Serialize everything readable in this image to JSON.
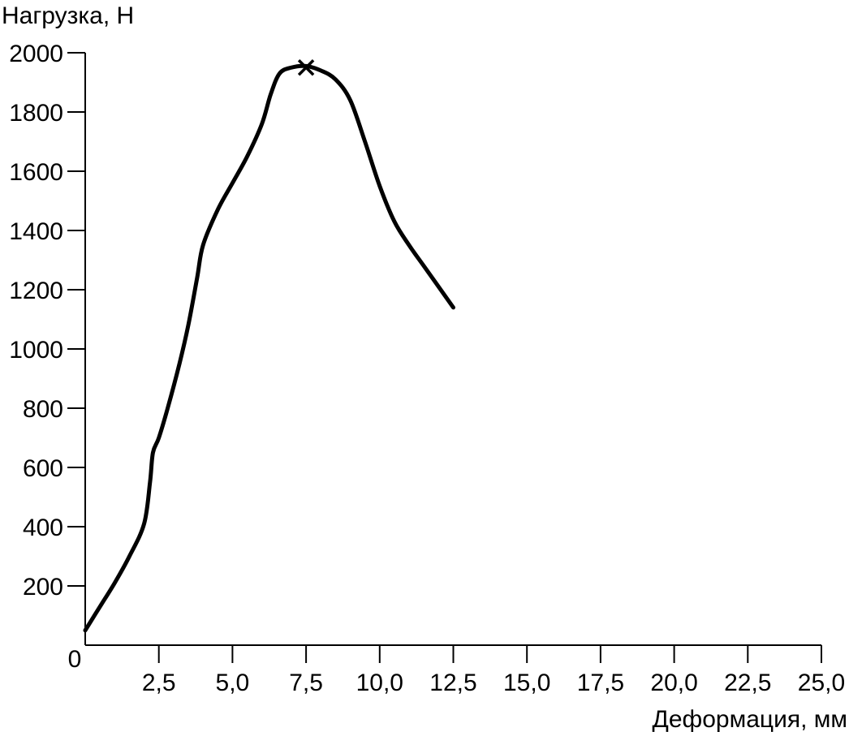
{
  "chart_data": {
    "type": "line",
    "title": "",
    "xlabel": "Деформация, мм",
    "ylabel": "Нагрузка, Н",
    "origin_label": "0",
    "xlim": [
      0,
      25
    ],
    "ylim": [
      0,
      2000
    ],
    "x_ticks": [
      2.5,
      5.0,
      7.5,
      10.0,
      12.5,
      15.0,
      17.5,
      20.0,
      22.5,
      25.0
    ],
    "x_tick_labels": [
      "2,5",
      "5,0",
      "7,5",
      "10,0",
      "12,5",
      "15,0",
      "17,5",
      "20,0",
      "22,5",
      "25,0"
    ],
    "y_ticks": [
      200,
      400,
      600,
      800,
      1000,
      1200,
      1400,
      1600,
      1800,
      2000
    ],
    "y_tick_labels": [
      "200",
      "400",
      "600",
      "800",
      "1000",
      "1200",
      "1400",
      "1600",
      "1800",
      "2000"
    ],
    "grid": false,
    "line_color": "#000000",
    "series": [
      {
        "x": [
          0,
          0.5,
          1.0,
          1.5,
          2.0,
          2.2,
          2.3,
          2.5,
          2.8,
          3.2,
          3.5,
          3.8,
          4.0,
          4.5,
          5.0,
          5.5,
          6.0,
          6.3,
          6.6,
          7.0,
          7.5,
          8.0,
          8.5,
          9.0,
          9.5,
          10.0,
          10.5,
          11.0,
          11.5,
          12.0,
          12.5
        ],
        "y": [
          50,
          130,
          210,
          300,
          410,
          550,
          650,
          700,
          800,
          950,
          1080,
          1240,
          1350,
          1470,
          1560,
          1650,
          1760,
          1860,
          1930,
          1950,
          1955,
          1940,
          1910,
          1840,
          1700,
          1550,
          1430,
          1350,
          1280,
          1210,
          1140
        ]
      }
    ],
    "annotations": [
      {
        "type": "marker",
        "symbol": "x",
        "x": 7.5,
        "y": 1950
      }
    ]
  }
}
